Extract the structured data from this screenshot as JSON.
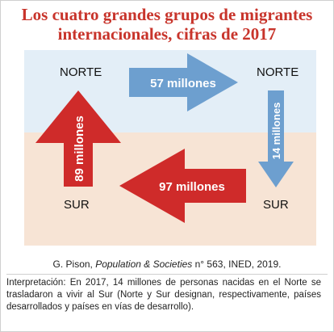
{
  "title": {
    "line1": "Los cuatro grandes grupos de migrantes",
    "line2": "internacionales, cifras de 2017"
  },
  "regions": {
    "north_left": "NORTE",
    "north_right": "NORTE",
    "south_left": "SUR",
    "south_right": "SUR"
  },
  "flows": {
    "north_to_north": "57 millones",
    "north_to_south": "14 millones",
    "south_to_south": "97 millones",
    "south_to_north": "89 millones"
  },
  "colors": {
    "title": "#c8342b",
    "north_band": "#e3eef7",
    "south_band": "#f7e4d5",
    "blue_arrow": "#6d9fcf",
    "red_arrow": "#cf2b2a"
  },
  "source": {
    "author": "G. Pison, ",
    "publication": "Population & Societies",
    "details": " n° 563, INED, 2019."
  },
  "interpretation": "Interpretación: En 2017, 14 millones de personas nacidas en el Norte se trasladaron a vivir al Sur (Norte y Sur designan, respectivamente, países desarrollados y países en vías de desarrollo)."
}
